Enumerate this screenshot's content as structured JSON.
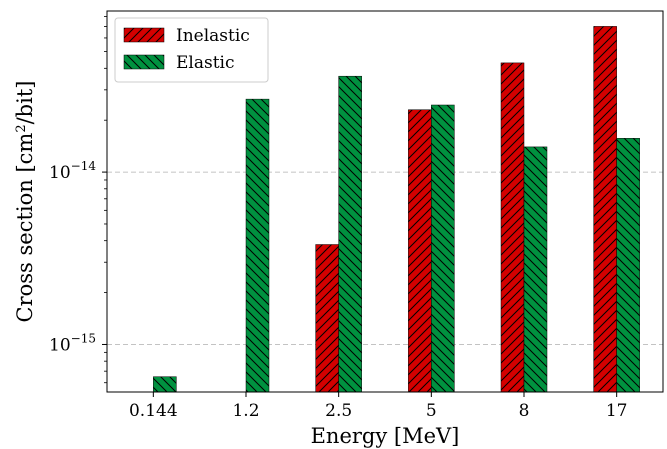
{
  "chart_data": {
    "type": "bar",
    "categories": [
      "0.144",
      "1.2",
      "2.5",
      "5",
      "8",
      "17"
    ],
    "series": [
      {
        "name": "Inelastic",
        "color": "#d40000",
        "hatch": "forward-diagonal",
        "values": [
          null,
          null,
          3.8e-15,
          2.3e-14,
          4.3e-14,
          7e-14
        ]
      },
      {
        "name": "Elastic",
        "color": "#00913f",
        "hatch": "back-diagonal",
        "values": [
          6.5e-16,
          2.65e-14,
          3.6e-14,
          2.45e-14,
          1.4e-14,
          1.57e-14
        ]
      }
    ],
    "xlabel": "Energy [MeV]",
    "ylabel": {
      "prefix": "Cross section [cm",
      "sup": "2",
      "suffix": "/bit]"
    },
    "yscale": "log",
    "ylim": [
      5.3e-16,
      8.6e-14
    ],
    "yticks": [
      {
        "value": 1e-15,
        "base": "10",
        "exp": "−15"
      },
      {
        "value": 1e-14,
        "base": "10",
        "exp": "−14"
      }
    ],
    "grid": "horizontal dashed at major ticks",
    "legend": "top-left"
  }
}
